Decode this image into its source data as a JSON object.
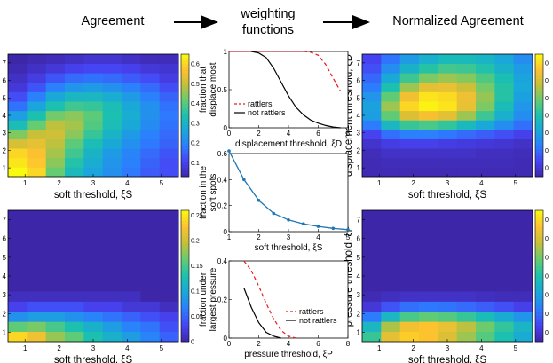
{
  "headers": {
    "left": "Agreement",
    "middle_line1": "weighting",
    "middle_line2": "functions",
    "right": "Normalized Agreement"
  },
  "colors": {
    "colormap": [
      "#3e26a8",
      "#4743f3",
      "#2c7dfe",
      "#1aa6db",
      "#1bc0b0",
      "#62cc73",
      "#c4c03a",
      "#fdc130",
      "#f9fb0e"
    ],
    "curve_blue": "#1f77b4",
    "dashed_red": "#e41a1c",
    "solid_black": "#000000"
  },
  "chart_data": [
    {
      "id": "agreement-displacement",
      "type": "heatmap",
      "xlabel": "soft threshold, ξS",
      "ylabel": "displacement threshold, ξD",
      "x_ticks": [
        "1",
        "2",
        "3",
        "4",
        "5"
      ],
      "y_ticks": [
        "1",
        "2",
        "3",
        "4",
        "5",
        "6",
        "7"
      ],
      "colorbar_ticks": [
        "0.1",
        "0.2",
        "0.3",
        "0.4",
        "0.5",
        "0.6"
      ],
      "clim": [
        0.03,
        0.65
      ],
      "grid_rows_from_bottom": [
        [
          0.65,
          0.6,
          0.42,
          0.32,
          0.26,
          0.22,
          0.18,
          0.14,
          0.12
        ],
        [
          0.62,
          0.58,
          0.45,
          0.35,
          0.28,
          0.23,
          0.19,
          0.15,
          0.12
        ],
        [
          0.6,
          0.57,
          0.47,
          0.38,
          0.3,
          0.24,
          0.2,
          0.16,
          0.13
        ],
        [
          0.52,
          0.54,
          0.49,
          0.41,
          0.33,
          0.27,
          0.22,
          0.18,
          0.15
        ],
        [
          0.44,
          0.5,
          0.51,
          0.45,
          0.37,
          0.3,
          0.24,
          0.19,
          0.16
        ],
        [
          0.33,
          0.42,
          0.49,
          0.47,
          0.4,
          0.33,
          0.27,
          0.21,
          0.17
        ],
        [
          0.25,
          0.34,
          0.43,
          0.45,
          0.41,
          0.34,
          0.28,
          0.22,
          0.18
        ],
        [
          0.17,
          0.26,
          0.34,
          0.38,
          0.37,
          0.33,
          0.27,
          0.22,
          0.17
        ],
        [
          0.12,
          0.19,
          0.27,
          0.31,
          0.31,
          0.28,
          0.24,
          0.19,
          0.15
        ],
        [
          0.08,
          0.13,
          0.19,
          0.23,
          0.24,
          0.22,
          0.19,
          0.16,
          0.12
        ],
        [
          0.06,
          0.09,
          0.13,
          0.16,
          0.17,
          0.16,
          0.14,
          0.12,
          0.09
        ],
        [
          0.04,
          0.06,
          0.08,
          0.1,
          0.11,
          0.11,
          0.1,
          0.08,
          0.07
        ],
        [
          0.03,
          0.04,
          0.05,
          0.06,
          0.07,
          0.07,
          0.06,
          0.05,
          0.05
        ]
      ]
    },
    {
      "id": "agreement-pressure",
      "type": "heatmap",
      "xlabel": "soft threshold, ξS",
      "ylabel": "pressure threshold, ξP",
      "x_ticks": [
        "1",
        "2",
        "3",
        "4",
        "5"
      ],
      "y_ticks": [
        "1",
        "2",
        "3",
        "4",
        "5",
        "6",
        "7"
      ],
      "colorbar_ticks": [
        "0",
        "0.05",
        "0.1",
        "0.15",
        "0.2",
        "0.25"
      ],
      "clim": [
        0,
        0.26
      ],
      "grid_rows_from_bottom": [
        [
          0.24,
          0.22,
          0.18,
          0.16,
          0.13,
          0.11,
          0.09,
          0.07,
          0.05
        ],
        [
          0.16,
          0.17,
          0.15,
          0.13,
          0.11,
          0.09,
          0.07,
          0.06,
          0.04
        ],
        [
          0.08,
          0.09,
          0.09,
          0.08,
          0.07,
          0.06,
          0.05,
          0.04,
          0.03
        ],
        [
          0.03,
          0.04,
          0.04,
          0.04,
          0.03,
          0.03,
          0.02,
          0.02,
          0.01
        ],
        [
          0.01,
          0.01,
          0.01,
          0.01,
          0.01,
          0.01,
          0.01,
          0.0,
          0.0
        ],
        [
          0.0,
          0.0,
          0.0,
          0.0,
          0.0,
          0.0,
          0.0,
          0.0,
          0.0
        ],
        [
          0.0,
          0.0,
          0.0,
          0.0,
          0.0,
          0.0,
          0.0,
          0.0,
          0.0
        ],
        [
          0.0,
          0.0,
          0.0,
          0.0,
          0.0,
          0.0,
          0.0,
          0.0,
          0.0
        ],
        [
          0.0,
          0.0,
          0.0,
          0.0,
          0.0,
          0.0,
          0.0,
          0.0,
          0.0
        ],
        [
          0.0,
          0.0,
          0.0,
          0.0,
          0.0,
          0.0,
          0.0,
          0.0,
          0.0
        ],
        [
          0.0,
          0.0,
          0.0,
          0.0,
          0.0,
          0.0,
          0.0,
          0.0,
          0.0
        ],
        [
          0.0,
          0.0,
          0.0,
          0.0,
          0.0,
          0.0,
          0.0,
          0.0,
          0.0
        ],
        [
          0.0,
          0.0,
          0.0,
          0.0,
          0.0,
          0.0,
          0.0,
          0.0,
          0.0
        ]
      ]
    },
    {
      "id": "weight-displacement",
      "type": "line",
      "title": "",
      "xlabel": "displacement threshold, ξD",
      "ylabel": "fraction that displace most",
      "xlim": [
        0,
        8
      ],
      "ylim": [
        0,
        1
      ],
      "x_ticks": [
        "0",
        "2",
        "4",
        "6",
        "8"
      ],
      "y_ticks": [
        "0",
        "0.5",
        "1"
      ],
      "legend": "lower-left",
      "series": [
        {
          "name": "rattlers",
          "style": "dashed",
          "x": [
            0,
            5.0,
            5.5,
            6.0,
            6.5,
            7.0,
            7.5
          ],
          "y": [
            1.0,
            1.0,
            0.99,
            0.95,
            0.83,
            0.65,
            0.48
          ]
        },
        {
          "name": "not rattlers",
          "style": "solid",
          "x": [
            1.5,
            2.0,
            2.5,
            3.0,
            3.5,
            4.0,
            4.5,
            5.0,
            5.5,
            6.0,
            6.5,
            7.0,
            7.5
          ],
          "y": [
            1.0,
            0.98,
            0.92,
            0.78,
            0.6,
            0.42,
            0.27,
            0.17,
            0.1,
            0.06,
            0.03,
            0.01,
            0.0
          ]
        }
      ]
    },
    {
      "id": "weight-soft",
      "type": "line",
      "xlabel": "soft threshold, ξS",
      "ylabel": "fraction in the soft spots",
      "xlim": [
        1,
        5
      ],
      "ylim": [
        0,
        0.6
      ],
      "x_ticks": [
        "1",
        "2",
        "3",
        "4",
        "5"
      ],
      "y_ticks": [
        "0",
        "0.2",
        "0.4",
        "0.6"
      ],
      "series": [
        {
          "name": "",
          "style": "marker-line",
          "x": [
            1.0,
            1.5,
            2.0,
            2.5,
            3.0,
            3.5,
            4.0,
            4.5,
            5.0
          ],
          "y": [
            0.62,
            0.4,
            0.24,
            0.14,
            0.09,
            0.06,
            0.04,
            0.025,
            0.015
          ]
        }
      ]
    },
    {
      "id": "weight-pressure",
      "type": "line",
      "xlabel": "pressure threshold, ξP",
      "ylabel": "fraction under largest pressure",
      "xlim": [
        0,
        8
      ],
      "ylim": [
        0,
        0.4
      ],
      "x_ticks": [
        "0",
        "2",
        "4",
        "6",
        "8"
      ],
      "y_ticks": [
        "0",
        "0.2",
        "0.4"
      ],
      "legend": "lower-right",
      "series": [
        {
          "name": "rattlers",
          "style": "dashed",
          "x": [
            1.0,
            1.5,
            2.0,
            2.5,
            3.0,
            3.5,
            4.0,
            4.5
          ],
          "y": [
            0.4,
            0.35,
            0.27,
            0.18,
            0.1,
            0.04,
            0.01,
            0.0
          ]
        },
        {
          "name": "not rattlers",
          "style": "solid",
          "x": [
            1.0,
            1.5,
            2.0,
            2.5,
            3.0,
            3.5
          ],
          "y": [
            0.26,
            0.16,
            0.08,
            0.03,
            0.01,
            0.0
          ]
        }
      ]
    },
    {
      "id": "normalized-displacement",
      "type": "heatmap",
      "xlabel": "soft threshold, ξS",
      "ylabel": "displacement threshold, ξD",
      "x_ticks": [
        "1",
        "2",
        "3",
        "4",
        "5"
      ],
      "y_ticks": [
        "1",
        "2",
        "3",
        "4",
        "5",
        "6",
        "7"
      ],
      "colorbar_ticks": [
        "0",
        "0",
        "0",
        "0",
        "0",
        "0",
        "0"
      ],
      "clim": [
        0,
        1
      ],
      "grid_rows_from_bottom": [
        [
          0.02,
          0.02,
          0.02,
          0.02,
          0.02,
          0.02,
          0.02,
          0.02,
          0.02
        ],
        [
          0.02,
          0.03,
          0.03,
          0.03,
          0.03,
          0.03,
          0.03,
          0.03,
          0.02
        ],
        [
          0.03,
          0.05,
          0.05,
          0.05,
          0.05,
          0.05,
          0.04,
          0.04,
          0.03
        ],
        [
          0.06,
          0.1,
          0.11,
          0.11,
          0.1,
          0.09,
          0.08,
          0.07,
          0.05
        ],
        [
          0.12,
          0.22,
          0.26,
          0.26,
          0.24,
          0.21,
          0.18,
          0.15,
          0.11
        ],
        [
          0.25,
          0.45,
          0.55,
          0.58,
          0.54,
          0.46,
          0.38,
          0.3,
          0.22
        ],
        [
          0.35,
          0.62,
          0.8,
          0.86,
          0.82,
          0.7,
          0.56,
          0.42,
          0.3
        ],
        [
          0.36,
          0.7,
          0.92,
          0.98,
          0.95,
          0.83,
          0.66,
          0.48,
          0.33
        ],
        [
          0.32,
          0.62,
          0.85,
          0.95,
          0.93,
          0.84,
          0.69,
          0.52,
          0.36
        ],
        [
          0.25,
          0.5,
          0.7,
          0.82,
          0.83,
          0.77,
          0.65,
          0.52,
          0.38
        ],
        [
          0.2,
          0.39,
          0.56,
          0.66,
          0.7,
          0.67,
          0.59,
          0.49,
          0.37
        ],
        [
          0.15,
          0.3,
          0.43,
          0.52,
          0.57,
          0.56,
          0.51,
          0.43,
          0.34
        ],
        [
          0.12,
          0.23,
          0.34,
          0.42,
          0.47,
          0.47,
          0.44,
          0.38,
          0.3
        ]
      ]
    },
    {
      "id": "normalized-pressure",
      "type": "heatmap",
      "xlabel": "soft threshold, ξS",
      "ylabel": "pressure threshold, ξP",
      "x_ticks": [
        "1",
        "2",
        "3",
        "4",
        "5"
      ],
      "y_ticks": [
        "1",
        "2",
        "3",
        "4",
        "5",
        "6",
        "7"
      ],
      "colorbar_ticks": [
        "0",
        "0",
        "0",
        "0",
        "0",
        "0",
        "0"
      ],
      "clim": [
        0,
        1
      ],
      "grid_rows_from_bottom": [
        [
          0.55,
          0.82,
          0.9,
          0.88,
          0.8,
          0.7,
          0.6,
          0.5,
          0.4
        ],
        [
          0.45,
          0.72,
          0.85,
          0.88,
          0.83,
          0.74,
          0.64,
          0.54,
          0.44
        ],
        [
          0.25,
          0.45,
          0.58,
          0.62,
          0.6,
          0.55,
          0.48,
          0.4,
          0.32
        ],
        [
          0.08,
          0.16,
          0.22,
          0.24,
          0.23,
          0.21,
          0.18,
          0.15,
          0.11
        ],
        [
          0.02,
          0.04,
          0.05,
          0.05,
          0.05,
          0.05,
          0.04,
          0.03,
          0.03
        ],
        [
          0.0,
          0.0,
          0.0,
          0.0,
          0.0,
          0.0,
          0.0,
          0.0,
          0.0
        ],
        [
          0.0,
          0.0,
          0.0,
          0.0,
          0.0,
          0.0,
          0.0,
          0.0,
          0.0
        ],
        [
          0.0,
          0.0,
          0.0,
          0.0,
          0.0,
          0.0,
          0.0,
          0.0,
          0.0
        ],
        [
          0.0,
          0.0,
          0.0,
          0.0,
          0.0,
          0.0,
          0.0,
          0.0,
          0.0
        ],
        [
          0.0,
          0.0,
          0.0,
          0.0,
          0.0,
          0.0,
          0.0,
          0.0,
          0.0
        ],
        [
          0.0,
          0.0,
          0.0,
          0.0,
          0.0,
          0.0,
          0.0,
          0.0,
          0.0
        ],
        [
          0.0,
          0.0,
          0.0,
          0.0,
          0.0,
          0.0,
          0.0,
          0.0,
          0.0
        ],
        [
          0.0,
          0.0,
          0.0,
          0.0,
          0.0,
          0.0,
          0.0,
          0.0,
          0.0
        ]
      ]
    }
  ]
}
